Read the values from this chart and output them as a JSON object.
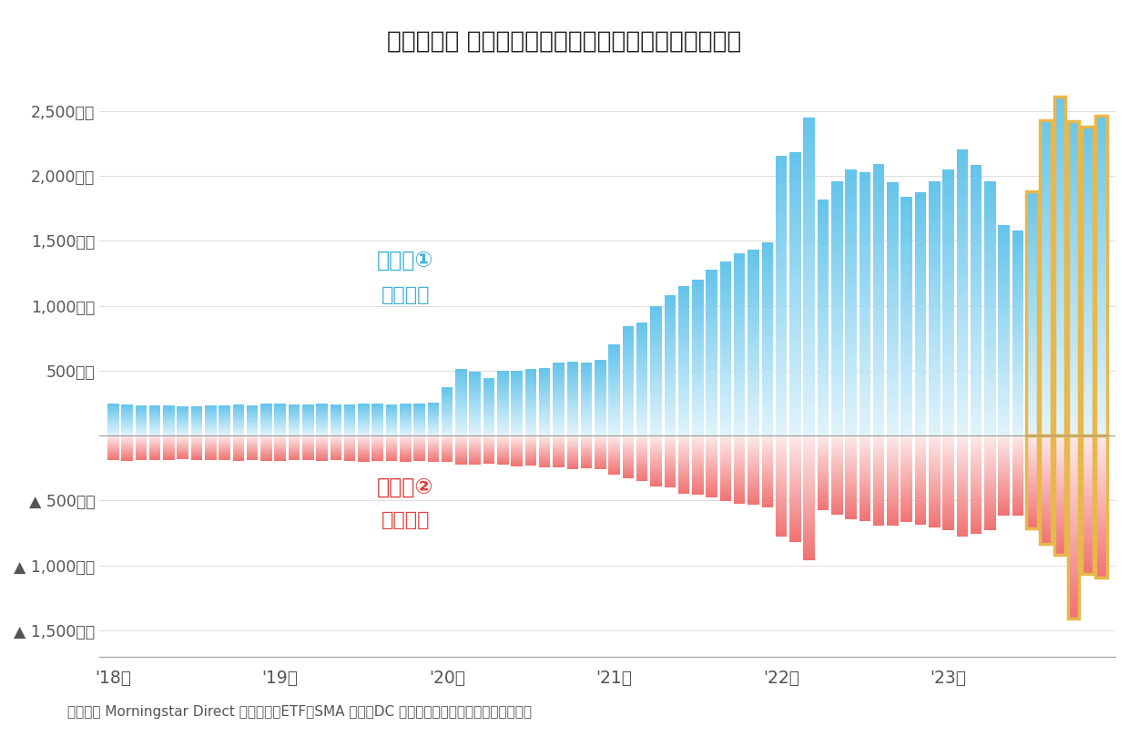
{
  "title": "【図表４】 インデックス型の米国株式投信の資金動向",
  "source_text": "（資料） Morningstar Direct より作成。ETF、SMA 専用、DC 専用以外の国内籍追加型株式投信。",
  "label_buy": "設定額①",
  "label_buy2": "（買付）",
  "label_sell": "解約額②",
  "label_sell2": "（売却）",
  "background_color": "#ffffff",
  "buy_color_sat": "#62C3EA",
  "buy_color_light": "#E0F3FB",
  "sell_color_sat": "#F07070",
  "sell_color_light": "#FDE8E8",
  "yellow_edge_color": "#E8B84B",
  "yellow_fill": "#FFF5CC",
  "x_tick_labels": [
    "'18年",
    "'19年",
    "'20年",
    "'21年",
    "'22年",
    "'23年"
  ],
  "x_tick_positions": [
    0,
    12,
    24,
    36,
    48,
    60
  ],
  "yticks_pos": [
    500,
    1000,
    1500,
    2000,
    2500
  ],
  "yticks_neg": [
    -500,
    -1000,
    -1500
  ],
  "buy_values": [
    245,
    240,
    235,
    230,
    230,
    225,
    225,
    235,
    235,
    240,
    235,
    245,
    245,
    240,
    240,
    245,
    238,
    242,
    245,
    248,
    242,
    250,
    245,
    255,
    370,
    510,
    490,
    440,
    500,
    500,
    510,
    520,
    560,
    570,
    560,
    580,
    700,
    840,
    870,
    1000,
    1080,
    1150,
    1200,
    1280,
    1340,
    1400,
    1430,
    1490,
    2150,
    2180,
    2450,
    1820,
    1960,
    2050,
    2030,
    2090,
    1950,
    1840,
    1870,
    1960,
    2050,
    2200,
    2080,
    1960,
    1620,
    1580,
    1880,
    2430,
    2610,
    2420,
    2380,
    2460
  ],
  "sell_values": [
    -190,
    -195,
    -190,
    -185,
    -185,
    -180,
    -185,
    -190,
    -190,
    -195,
    -190,
    -195,
    -195,
    -190,
    -190,
    -195,
    -190,
    -195,
    -200,
    -195,
    -195,
    -200,
    -195,
    -205,
    -205,
    -220,
    -225,
    -215,
    -225,
    -235,
    -230,
    -245,
    -245,
    -255,
    -250,
    -260,
    -300,
    -330,
    -350,
    -390,
    -400,
    -445,
    -455,
    -475,
    -505,
    -525,
    -535,
    -555,
    -780,
    -820,
    -960,
    -575,
    -610,
    -645,
    -655,
    -695,
    -695,
    -665,
    -685,
    -705,
    -730,
    -775,
    -755,
    -725,
    -615,
    -615,
    -715,
    -835,
    -915,
    -1410,
    -1065,
    -1095
  ],
  "yellow_indices": [
    66,
    67,
    68,
    69,
    70,
    71
  ],
  "n_bars": 72,
  "ylim_top": 2850,
  "ylim_bottom": -1700,
  "bar_width": 0.82
}
